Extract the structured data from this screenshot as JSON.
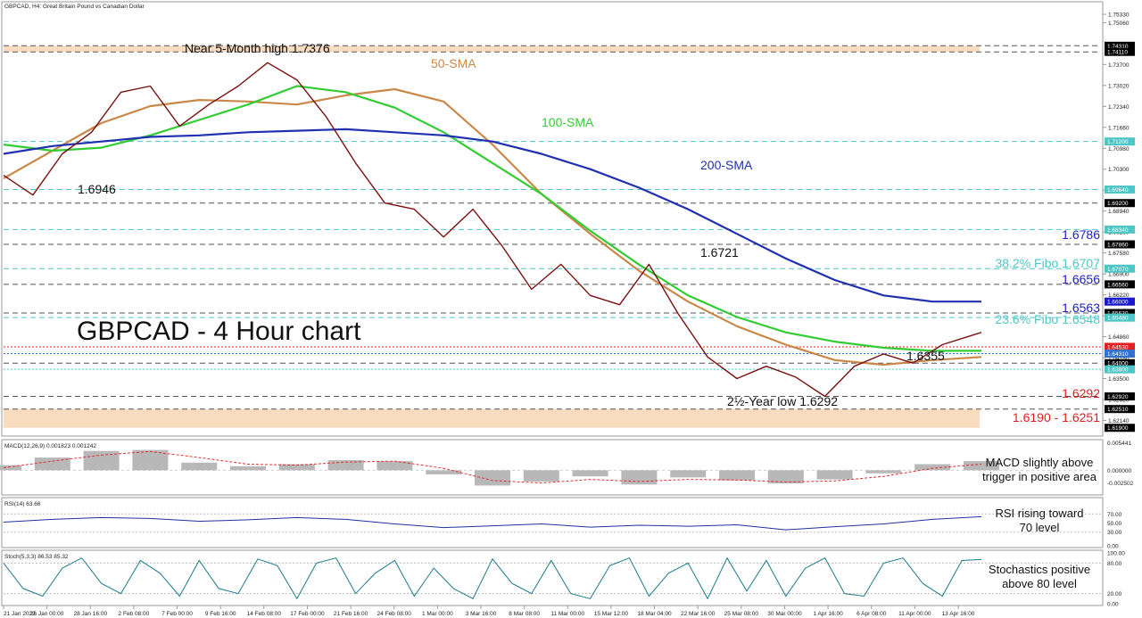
{
  "header": {
    "symbol_line": "GBPCAD, H4:  Great Britain Pound vs Canadian Dollar"
  },
  "chart_data": [
    {
      "type": "line",
      "panel": "price",
      "title": "GBPCAD - 4 Hour chart",
      "ylim": [
        1.6169,
        1.7568
      ],
      "grid": false,
      "x_tick_labels": [
        "21 Jan 2022",
        "26 Jan 00:00",
        "28 Jan 16:00",
        "2 Feb 08:00",
        "7 Feb 00:00",
        "9 Feb 16:00",
        "14 Feb 08:00",
        "17 Feb 00:00",
        "21 Feb 16:00",
        "24 Feb 08:00",
        "1 Mar 00:00",
        "3 Mar 16:00",
        "8 Mar 08:00",
        "11 Mar 00:00",
        "15 Mar 12:00",
        "18 Mar 04:00",
        "22 Mar 16:00",
        "25 Mar 08:00",
        "30 Mar 00:00",
        "1 Apr 16:00",
        "6 Apr 08:00",
        "11 Apr 00:00",
        "13 Apr 16:00"
      ],
      "y_tick_labels": [
        "1.75330",
        "1.75060",
        "1.73700",
        "1.73020",
        "1.72340",
        "1.71660",
        "1.70980",
        "1.70300",
        "1.69620",
        "1.68940",
        "1.68260",
        "1.67580",
        "1.66900",
        "1.66220",
        "1.65540",
        "1.64860",
        "1.64180",
        "1.63500",
        "1.62820",
        "1.62140"
      ],
      "price_badges": [
        {
          "label": "1.74310",
          "value": 1.7431,
          "color": "#000000"
        },
        {
          "label": "1.74110",
          "value": 1.7411,
          "color": "#000000"
        },
        {
          "label": "1.71200",
          "value": 1.712,
          "color": "#4fc6c6"
        },
        {
          "label": "1.69640",
          "value": 1.6964,
          "color": "#4fc6c6"
        },
        {
          "label": "1.69200",
          "value": 1.692,
          "color": "#000000"
        },
        {
          "label": "1.68340",
          "value": 1.6834,
          "color": "#4fc6c6"
        },
        {
          "label": "1.67860",
          "value": 1.6786,
          "color": "#000000"
        },
        {
          "label": "1.67070",
          "value": 1.6707,
          "color": "#4fc6c6"
        },
        {
          "label": "1.66560",
          "value": 1.6656,
          "color": "#000000"
        },
        {
          "label": "1.66000",
          "value": 1.66,
          "color": "#1a1acc"
        },
        {
          "label": "1.65630",
          "value": 1.6563,
          "color": "#000000"
        },
        {
          "label": "1.65480",
          "value": 1.6548,
          "color": "#4fc6c6"
        },
        {
          "label": "1.64530",
          "value": 1.6453,
          "color": "#e02020"
        },
        {
          "label": "1.64310",
          "value": 1.6431,
          "color": "#3070d0"
        },
        {
          "label": "1.64000",
          "value": 1.64,
          "color": "#000000"
        },
        {
          "label": "1.63800",
          "value": 1.638,
          "color": "#4fc6c6"
        },
        {
          "label": "1.62920",
          "value": 1.6292,
          "color": "#000000"
        },
        {
          "label": "1.62510",
          "value": 1.6251,
          "color": "#000000"
        },
        {
          "label": "1.61900",
          "value": 1.619,
          "color": "#000000"
        }
      ],
      "levels": [
        {
          "value": 1.7431,
          "color": "#555555",
          "style": "dash"
        },
        {
          "value": 1.7411,
          "color": "#555555",
          "style": "dash"
        },
        {
          "value": 1.712,
          "color": "#4fc6c6",
          "style": "dash"
        },
        {
          "value": 1.6964,
          "color": "#4fc6c6",
          "style": "dash"
        },
        {
          "value": 1.692,
          "color": "#555555",
          "style": "dash"
        },
        {
          "value": 1.6834,
          "color": "#4fc6c6",
          "style": "dash"
        },
        {
          "value": 1.6786,
          "color": "#555555",
          "style": "dash"
        },
        {
          "value": 1.6707,
          "color": "#4fc6c6",
          "style": "dash"
        },
        {
          "value": 1.6656,
          "color": "#555555",
          "style": "dash"
        },
        {
          "value": 1.6563,
          "color": "#555555",
          "style": "dash"
        },
        {
          "value": 1.6548,
          "color": "#4fc6c6",
          "style": "dash"
        },
        {
          "value": 1.6453,
          "color": "#e02020",
          "style": "dot"
        },
        {
          "value": 1.6431,
          "color": "#3070d0",
          "style": "dot"
        },
        {
          "value": 1.64,
          "color": "#555555",
          "style": "dash"
        },
        {
          "value": 1.638,
          "color": "#4fc6c6",
          "style": "dot"
        },
        {
          "value": 1.6292,
          "color": "#555555",
          "style": "dash"
        },
        {
          "value": 1.6251,
          "color": "#555555",
          "style": "dash"
        }
      ],
      "zones": [
        {
          "from": 1.7411,
          "to": 1.7431,
          "color": "#f8dcc0"
        },
        {
          "from": 1.619,
          "to": 1.6251,
          "color": "#f8dcc0"
        }
      ],
      "series": [
        {
          "name": "50-SMA",
          "color": "#c9884a",
          "label_color": "#c9884a",
          "x": [
            0,
            5,
            10,
            15,
            20,
            25,
            30,
            35,
            40,
            45,
            50,
            55,
            60,
            65,
            70,
            75,
            80,
            85,
            90,
            95,
            100
          ],
          "y": [
            1.7,
            1.709,
            1.718,
            1.7235,
            1.7255,
            1.725,
            1.724,
            1.727,
            1.729,
            1.725,
            1.711,
            1.695,
            1.682,
            1.67,
            1.66,
            1.652,
            1.646,
            1.641,
            1.6395,
            1.641,
            1.642
          ]
        },
        {
          "name": "100-SMA",
          "color": "#33cc33",
          "label_color": "#33cc33",
          "x": [
            0,
            5,
            10,
            15,
            20,
            25,
            30,
            35,
            40,
            45,
            50,
            55,
            60,
            65,
            70,
            75,
            80,
            85,
            90,
            95,
            100
          ],
          "y": [
            1.711,
            1.709,
            1.71,
            1.714,
            1.719,
            1.724,
            1.73,
            1.728,
            1.723,
            1.715,
            1.705,
            1.695,
            1.683,
            1.672,
            1.662,
            1.655,
            1.65,
            1.647,
            1.645,
            1.644,
            1.644
          ]
        },
        {
          "name": "200-SMA",
          "color": "#2030b0",
          "label_color": "#2030b0",
          "x": [
            0,
            5,
            10,
            15,
            20,
            25,
            30,
            35,
            40,
            45,
            50,
            55,
            60,
            65,
            70,
            75,
            80,
            85,
            90,
            95,
            100
          ],
          "y": [
            1.708,
            1.7105,
            1.712,
            1.7135,
            1.714,
            1.715,
            1.7155,
            1.716,
            1.715,
            1.714,
            1.712,
            1.708,
            1.703,
            1.697,
            1.69,
            1.682,
            1.674,
            1.667,
            1.662,
            1.66,
            1.66
          ]
        },
        {
          "name": "price",
          "x": [
            0,
            3,
            6,
            9,
            12,
            15,
            18,
            21,
            24,
            27,
            30,
            33,
            36,
            39,
            42,
            45,
            48,
            51,
            54,
            57,
            60,
            63,
            66,
            69,
            72,
            75,
            78,
            81,
            84,
            87,
            90,
            93,
            96,
            100
          ],
          "y": [
            1.701,
            1.6946,
            1.708,
            1.715,
            1.728,
            1.73,
            1.717,
            1.724,
            1.73,
            1.7376,
            1.732,
            1.72,
            1.705,
            1.692,
            1.69,
            1.681,
            1.69,
            1.678,
            1.664,
            1.6721,
            1.662,
            1.659,
            1.6721,
            1.656,
            1.642,
            1.635,
            1.639,
            1.6355,
            1.6292,
            1.639,
            1.643,
            1.64,
            1.646,
            1.65
          ]
        }
      ],
      "annotations": [
        {
          "text": "Near 5-Month high 1.7376",
          "value": 1.7376,
          "color": "#111111"
        },
        {
          "text": "1.6946",
          "value": 1.6946,
          "color": "#111111"
        },
        {
          "text": "1.6721",
          "value": 1.6721,
          "color": "#111111"
        },
        {
          "text": "2½-Year low 1.6292",
          "value": 1.6292,
          "color": "#111111"
        },
        {
          "text": "1.6355",
          "value": 1.6355,
          "color": "#111111"
        }
      ],
      "level_labels": [
        {
          "text": "1.6786",
          "color": "#2020c0"
        },
        {
          "text": "38.2% Fibo 1.6707",
          "color": "#4fc6c6"
        },
        {
          "text": "1.6656",
          "color": "#2020c0"
        },
        {
          "text": "1.6563",
          "color": "#2020c0"
        },
        {
          "text": "23.6% Fibo 1.6548",
          "color": "#4fc6c6"
        },
        {
          "text": "1.6292",
          "color": "#e02020"
        },
        {
          "text": "1.6190 - 1.6251",
          "color": "#e02020"
        }
      ]
    },
    {
      "type": "bar",
      "panel": "macd",
      "title": "MACD(12,26,9) 0.001823 0.001242",
      "y_tick_labels": [
        "0.005441",
        "0.000000",
        "-0.002502"
      ],
      "ylim": [
        -0.0045,
        0.0055
      ],
      "x": [
        0,
        5,
        10,
        15,
        20,
        25,
        30,
        35,
        40,
        45,
        50,
        55,
        60,
        65,
        70,
        75,
        80,
        85,
        90,
        95,
        100
      ],
      "values": [
        0.001,
        0.0025,
        0.0038,
        0.004,
        0.0015,
        0.0008,
        0.0012,
        0.002,
        0.0018,
        -0.0008,
        -0.003,
        -0.0022,
        -0.0012,
        -0.0028,
        -0.0014,
        -0.002,
        -0.0026,
        -0.0018,
        -0.0006,
        0.0012,
        0.0018
      ],
      "signal": [
        0.0005,
        0.0018,
        0.003,
        0.0037,
        0.0025,
        0.0012,
        0.001,
        0.0016,
        0.0018,
        0.0004,
        -0.002,
        -0.0025,
        -0.0018,
        -0.0022,
        -0.0018,
        -0.0019,
        -0.0023,
        -0.0021,
        -0.0012,
        0.0004,
        0.0012
      ],
      "comment": "MACD slightly above trigger in positive area"
    },
    {
      "type": "line",
      "panel": "rsi",
      "title": "RSI(14) 63.66",
      "ylim": [
        0,
        100
      ],
      "y_tick_labels": [
        "70.00",
        "50.00",
        "30.00",
        "0.00"
      ],
      "x": [
        0,
        5,
        10,
        15,
        20,
        25,
        30,
        35,
        40,
        45,
        50,
        55,
        60,
        65,
        70,
        75,
        80,
        85,
        90,
        95,
        100
      ],
      "values": [
        52,
        58,
        62,
        60,
        54,
        57,
        62,
        58,
        48,
        40,
        44,
        48,
        41,
        45,
        43,
        46,
        35,
        42,
        48,
        58,
        64
      ],
      "comment": "RSI rising toward 70 level"
    },
    {
      "type": "line",
      "panel": "stoch",
      "title": "Stoch(5,3,3) 86.53 85.32",
      "ylim": [
        0,
        100
      ],
      "y_tick_labels": [
        "100.00",
        "80.00",
        "20.00",
        "0.00"
      ],
      "x": [
        0,
        2,
        4,
        6,
        8,
        10,
        12,
        14,
        16,
        18,
        20,
        22,
        24,
        26,
        28,
        30,
        32,
        34,
        36,
        38,
        40,
        42,
        44,
        46,
        48,
        50,
        52,
        54,
        56,
        58,
        60,
        62,
        64,
        66,
        68,
        70,
        72,
        74,
        76,
        78,
        80,
        82,
        84,
        86,
        88,
        90,
        92,
        94,
        96,
        98,
        100
      ],
      "values": [
        80,
        30,
        15,
        70,
        90,
        40,
        20,
        85,
        60,
        15,
        85,
        30,
        20,
        88,
        75,
        10,
        80,
        90,
        20,
        60,
        85,
        15,
        70,
        30,
        10,
        88,
        40,
        20,
        85,
        20,
        10,
        75,
        90,
        15,
        60,
        80,
        10,
        90,
        25,
        85,
        15,
        70,
        90,
        20,
        15,
        80,
        90,
        40,
        15,
        85,
        87
      ],
      "comment": "Stochastics positive above 80 level"
    }
  ]
}
